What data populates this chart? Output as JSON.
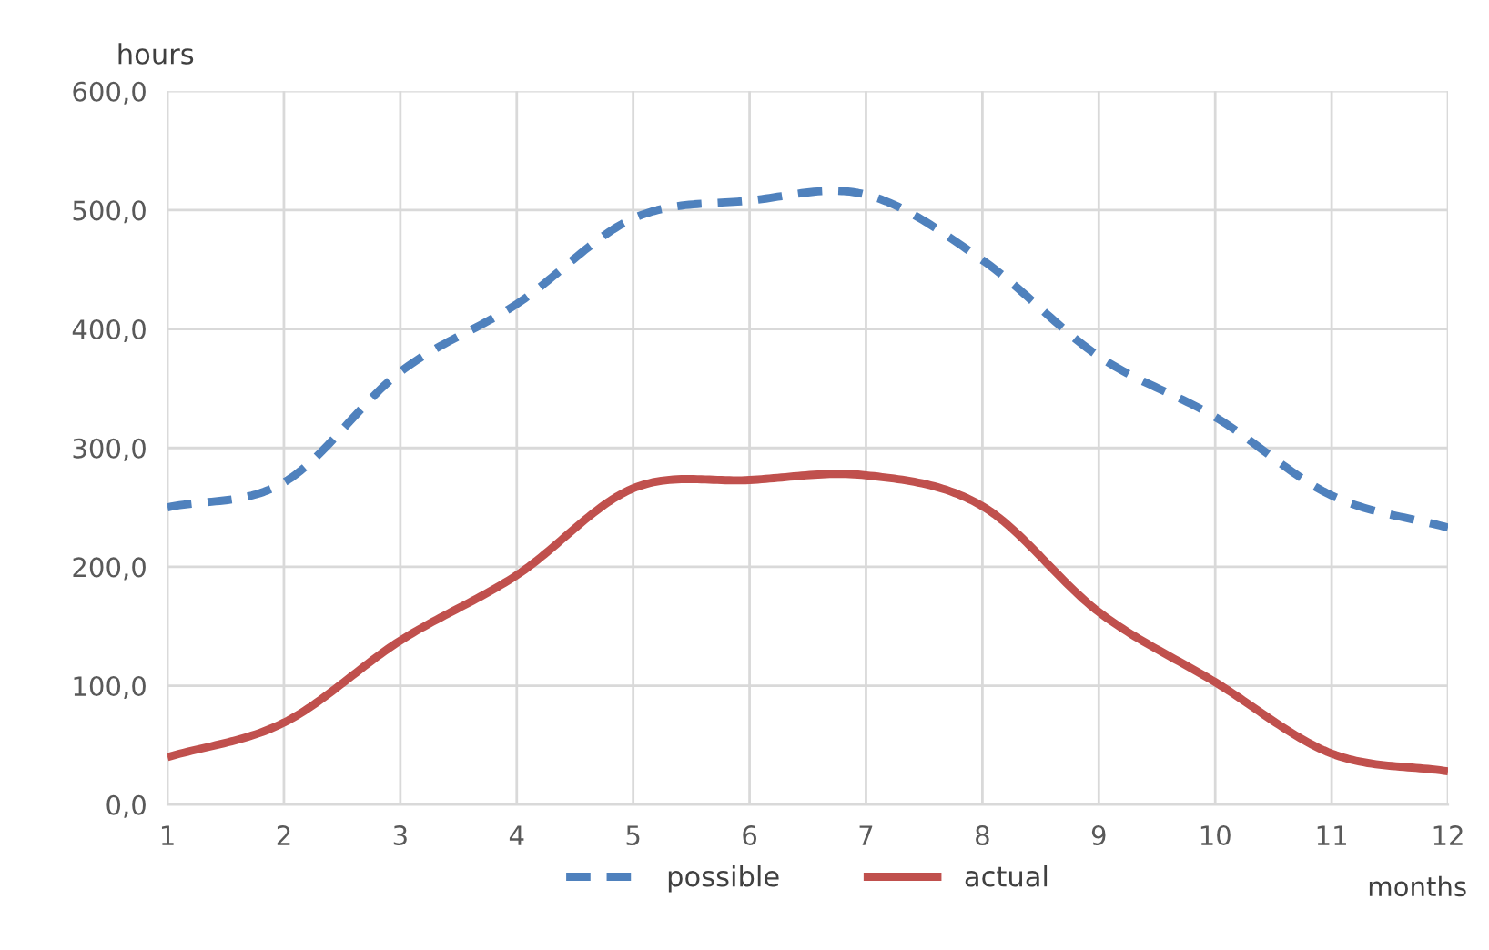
{
  "chart_data": {
    "type": "line",
    "xlabel": "months",
    "ylabel": "hours",
    "x": [
      1,
      2,
      3,
      4,
      5,
      6,
      7,
      8,
      9,
      10,
      11,
      12
    ],
    "series": [
      {
        "name": "possible",
        "color": "#4f81bd",
        "line_style": "dashed",
        "values": [
          250,
          271,
          364,
          421,
          493,
          508,
          513,
          458,
          377,
          326,
          260,
          233
        ]
      },
      {
        "name": "actual",
        "color": "#c0504d",
        "line_style": "solid",
        "values": [
          40,
          69,
          138,
          193,
          266,
          273,
          277,
          251,
          162,
          103,
          43,
          28
        ]
      }
    ],
    "xlim": [
      1,
      12
    ],
    "xticks": [
      1,
      2,
      3,
      4,
      5,
      6,
      7,
      8,
      9,
      10,
      11,
      12
    ],
    "ylim": [
      0,
      600
    ],
    "yticks": [
      {
        "value": 0,
        "label": "0,0"
      },
      {
        "value": 100,
        "label": "100,0"
      },
      {
        "value": 200,
        "label": "200,0"
      },
      {
        "value": 300,
        "label": "300,0"
      },
      {
        "value": 400,
        "label": "400,0"
      },
      {
        "value": 500,
        "label": "500,0"
      },
      {
        "value": 600,
        "label": "600,0"
      }
    ],
    "grid": true,
    "legend": "bottom",
    "marker": "none"
  }
}
